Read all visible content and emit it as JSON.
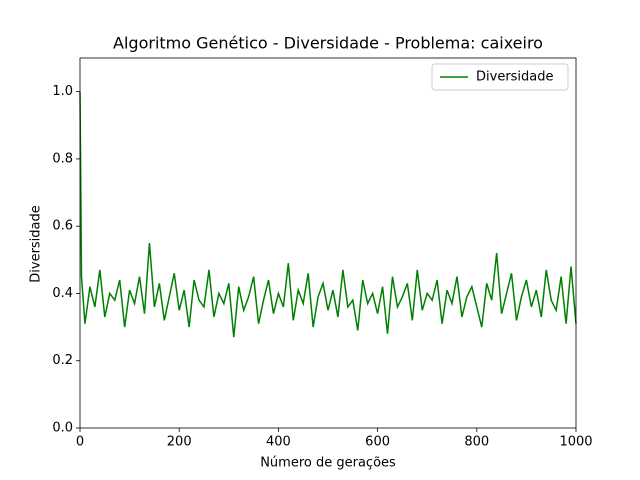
{
  "chart_data": {
    "type": "line",
    "title": "Algoritmo Genético - Diversidade - Problema: caixeiro",
    "x_label": "Número de gerações",
    "y_label": "Diversidade",
    "x": [
      0,
      3,
      10,
      20,
      30,
      40,
      50,
      60,
      70,
      80,
      90,
      100,
      110,
      120,
      130,
      140,
      150,
      160,
      170,
      180,
      190,
      200,
      210,
      220,
      230,
      240,
      250,
      260,
      270,
      280,
      290,
      300,
      310,
      320,
      330,
      340,
      350,
      360,
      370,
      380,
      390,
      400,
      410,
      420,
      430,
      440,
      450,
      460,
      470,
      480,
      490,
      500,
      510,
      520,
      530,
      540,
      550,
      560,
      570,
      580,
      590,
      600,
      610,
      620,
      630,
      640,
      650,
      660,
      670,
      680,
      690,
      700,
      710,
      720,
      730,
      740,
      750,
      760,
      770,
      780,
      790,
      800,
      810,
      820,
      830,
      840,
      850,
      860,
      870,
      880,
      890,
      900,
      910,
      920,
      930,
      940,
      950,
      960,
      970,
      980,
      990,
      1000
    ],
    "series": [
      {
        "name": "Diversidade",
        "color": "#008000",
        "values": [
          1.0,
          0.45,
          0.31,
          0.42,
          0.36,
          0.47,
          0.33,
          0.4,
          0.38,
          0.44,
          0.3,
          0.41,
          0.37,
          0.45,
          0.34,
          0.55,
          0.36,
          0.43,
          0.32,
          0.39,
          0.46,
          0.35,
          0.41,
          0.3,
          0.44,
          0.38,
          0.36,
          0.47,
          0.33,
          0.4,
          0.37,
          0.43,
          0.27,
          0.42,
          0.35,
          0.39,
          0.45,
          0.31,
          0.38,
          0.44,
          0.34,
          0.4,
          0.36,
          0.49,
          0.32,
          0.41,
          0.37,
          0.46,
          0.3,
          0.39,
          0.43,
          0.35,
          0.41,
          0.33,
          0.47,
          0.36,
          0.38,
          0.29,
          0.44,
          0.37,
          0.4,
          0.34,
          0.42,
          0.28,
          0.45,
          0.36,
          0.39,
          0.43,
          0.32,
          0.47,
          0.35,
          0.4,
          0.38,
          0.44,
          0.31,
          0.41,
          0.37,
          0.45,
          0.33,
          0.39,
          0.42,
          0.36,
          0.3,
          0.43,
          0.38,
          0.52,
          0.34,
          0.4,
          0.46,
          0.32,
          0.39,
          0.44,
          0.36,
          0.41,
          0.33,
          0.47,
          0.38,
          0.35,
          0.45,
          0.31,
          0.48,
          0.31
        ]
      }
    ],
    "xlim": [
      0,
      1000
    ],
    "xticks": [
      0,
      200,
      400,
      600,
      800,
      1000
    ],
    "ylim": [
      0,
      1.1
    ],
    "yticks": [
      {
        "value": 0,
        "label": "0.0"
      },
      0.2,
      0.4,
      0.6,
      0.8,
      {
        "value": 1,
        "label": "1.0"
      }
    ],
    "legend": "upper right"
  }
}
